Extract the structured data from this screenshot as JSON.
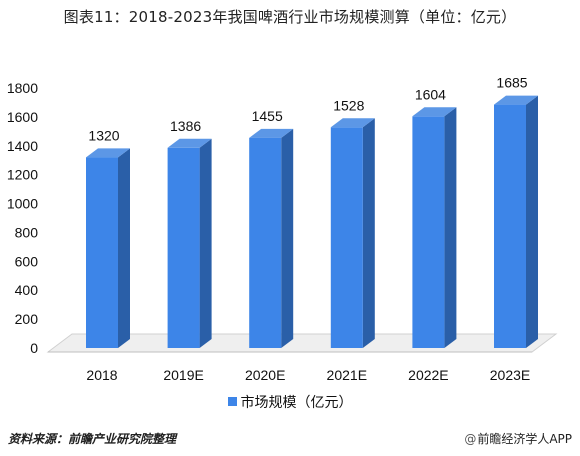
{
  "header": {
    "title": "图表11：2018-2023年我国啤酒行业市场规模测算（单位：亿元）"
  },
  "chart_data": {
    "type": "bar",
    "title": "图表11：2018-2023年我国啤酒行业市场规模测算（单位：亿元）",
    "categories": [
      "2018",
      "2019E",
      "2020E",
      "2021E",
      "2022E",
      "2023E"
    ],
    "series": [
      {
        "name": "市场规模（亿元）",
        "values": [
          1320,
          1386,
          1455,
          1528,
          1604,
          1685
        ]
      }
    ],
    "data_labels": [
      "1320",
      "1386",
      "1455",
      "1528",
      "1604",
      "1685"
    ],
    "y_ticks": [
      "0",
      "200",
      "400",
      "600",
      "800",
      "1000",
      "1200",
      "1400",
      "1600",
      "1800"
    ],
    "ylim": [
      0,
      1800
    ],
    "style": "3d-column",
    "grid": false,
    "legend_position": "bottom",
    "colors": {
      "front": "#3D85E8",
      "side": "#2A5FA8",
      "top": "#5C97E6",
      "floor": "#EFEFEF"
    }
  },
  "legend": {
    "label": "市场规模（亿元）"
  },
  "footer": {
    "source": "资料来源：前瞻产业研究院整理",
    "brand_icon": "@",
    "brand": "前瞻经济学人APP"
  }
}
